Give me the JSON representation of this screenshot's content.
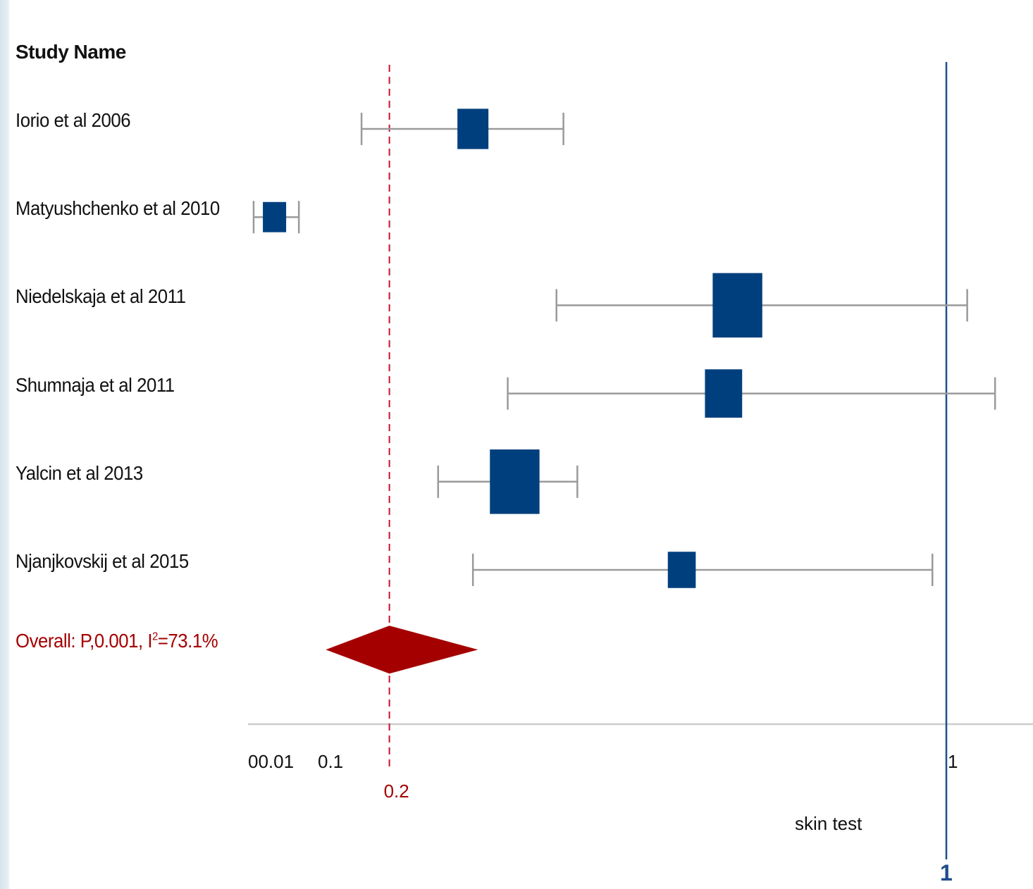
{
  "chart_data": {
    "type": "forest",
    "header": "Study Name",
    "xlabel": "skin test",
    "studies": [
      {
        "name": "Iorio et al 2006",
        "estimate": 0.32,
        "lower": 0.16,
        "upper": 0.45,
        "weight": 1.0
      },
      {
        "name": "Matyushchenko et al 2010",
        "estimate": 0.035,
        "lower": 0.005,
        "upper": 0.07,
        "weight": 0.75
      },
      {
        "name": "Niedelskaja et al 2011",
        "estimate": 0.7,
        "lower": 0.44,
        "upper": 1.03,
        "weight": 1.6
      },
      {
        "name": "Shumnaja et al 2011",
        "estimate": 0.68,
        "lower": 0.37,
        "upper": 1.07,
        "weight": 1.2
      },
      {
        "name": "Yalcin et al 2013",
        "estimate": 0.38,
        "lower": 0.27,
        "upper": 0.47,
        "weight": 1.6
      },
      {
        "name": "Njanjkovskij et al 2015",
        "estimate": 0.62,
        "lower": 0.32,
        "upper": 0.98,
        "weight": 0.9
      }
    ],
    "overall": {
      "label_prefix": "Overall: P,0.001, I",
      "label_sup": "2",
      "label_suffix": "=73.1%",
      "estimate": 0.2,
      "lower": 0.06,
      "upper": 0.3
    },
    "ticks": [
      {
        "value": 0.01,
        "label": "00.01"
      },
      {
        "value": 0.1,
        "label": "0.1"
      },
      {
        "value": 1,
        "label": "1"
      }
    ],
    "reference_line": {
      "value": 0.2,
      "label": "0.2",
      "color": "#c8102e"
    },
    "null_line": {
      "value": 1,
      "label": "1",
      "color": "#1f4e8c"
    },
    "xlim": [
      0,
      1.1
    ],
    "colors": {
      "box": "#003f7d",
      "ci": "#9a9a9a",
      "diamond": "#a50000",
      "axis": "#cccccc"
    }
  }
}
